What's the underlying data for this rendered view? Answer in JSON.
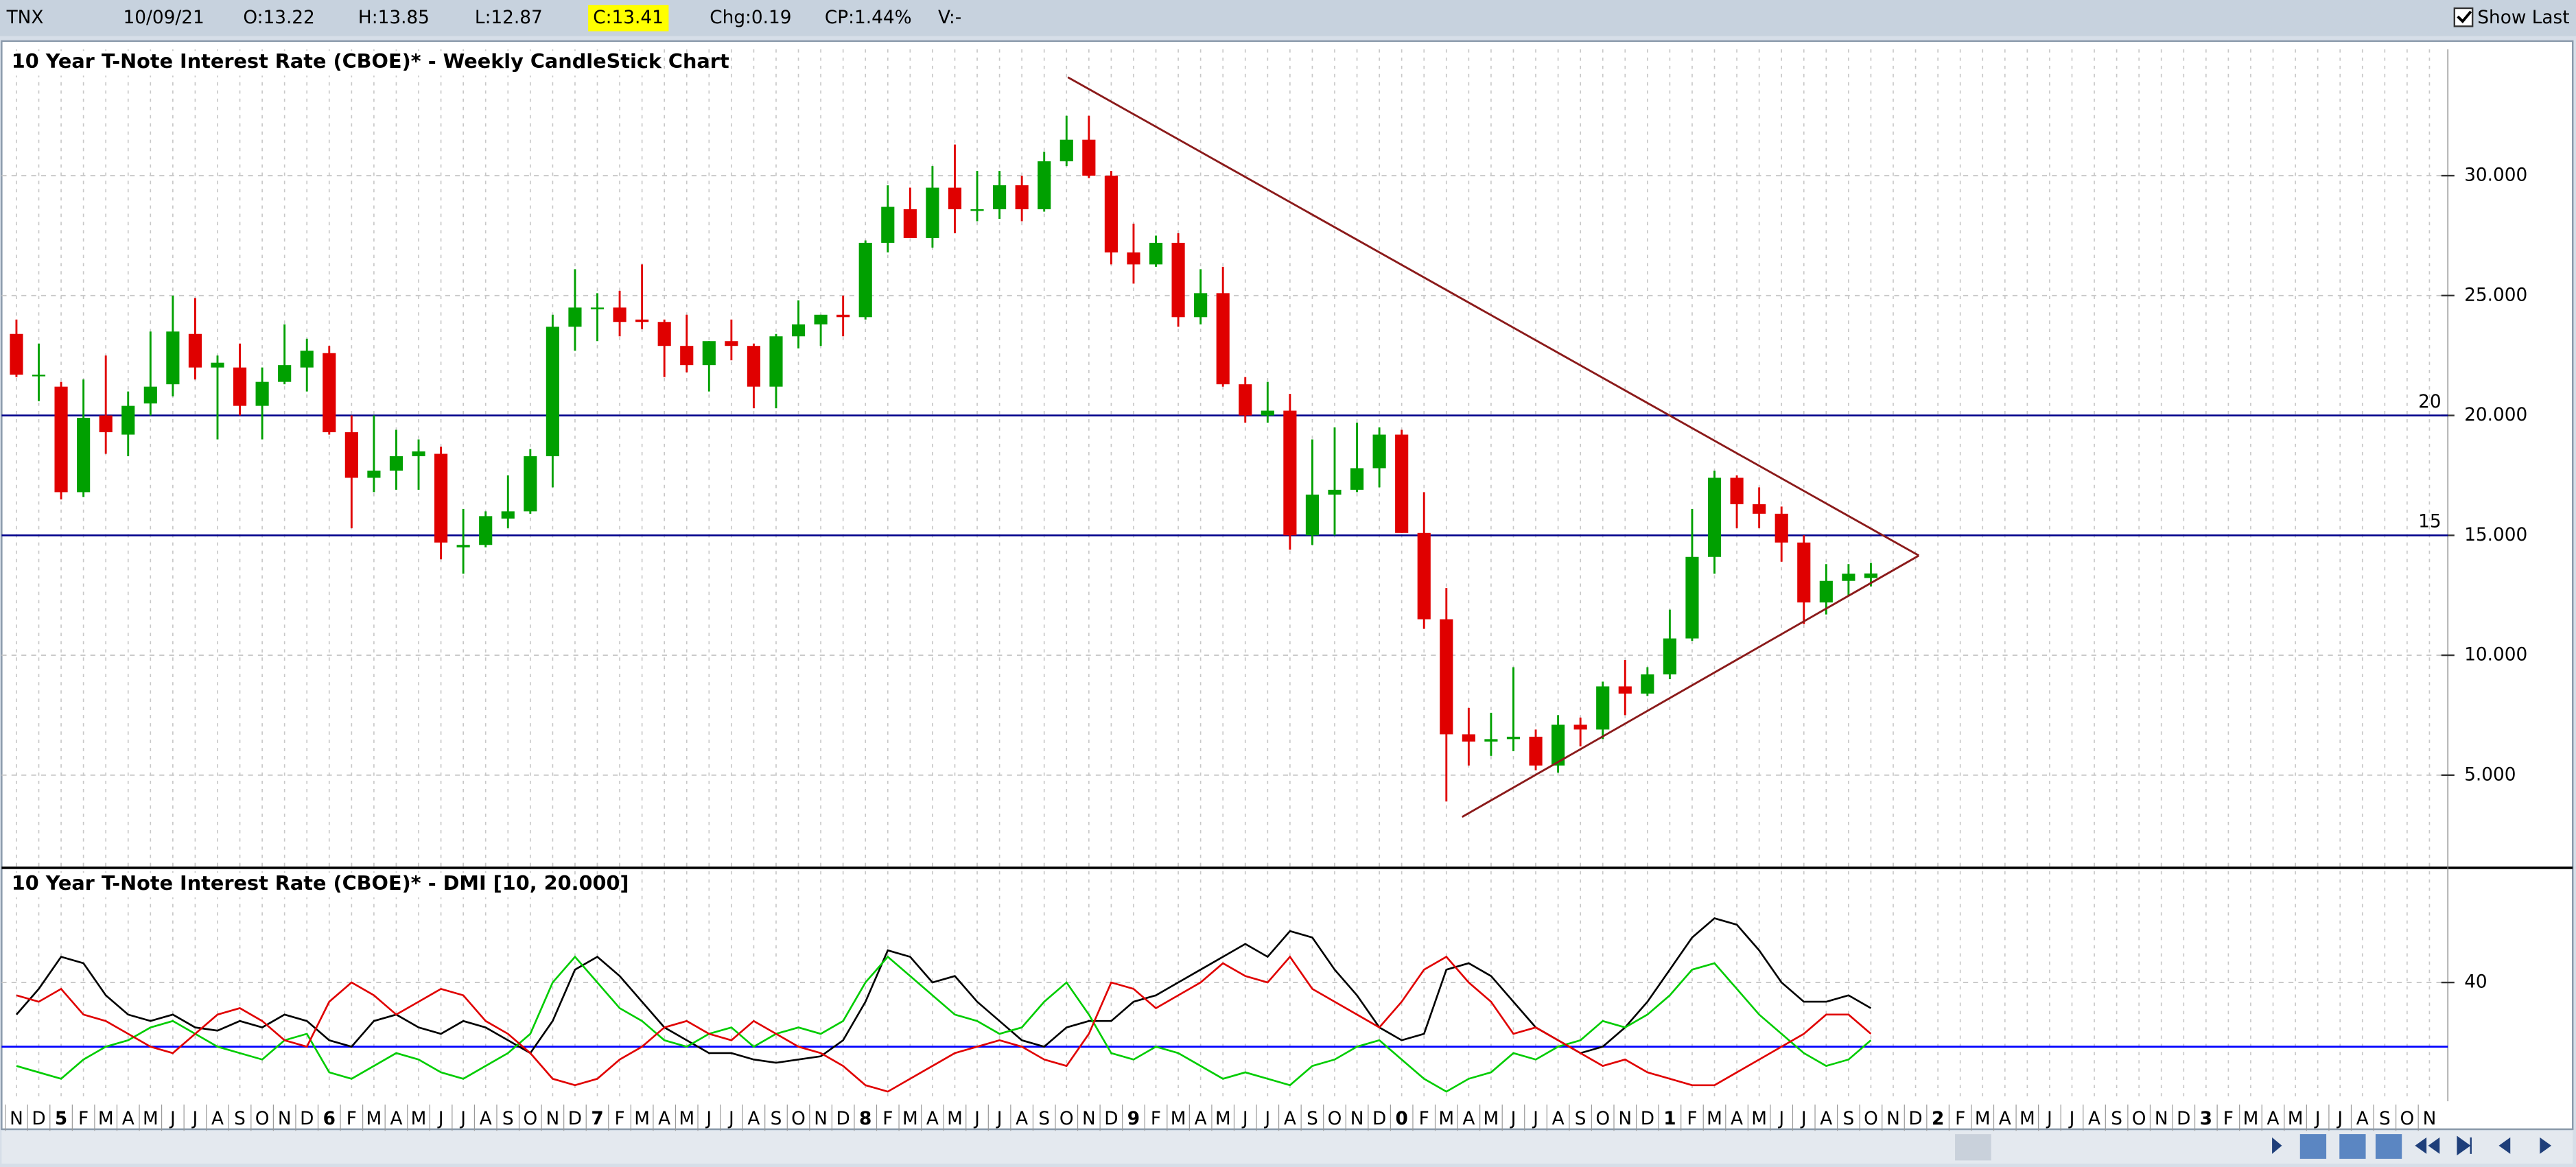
{
  "header": {
    "symbol": "TNX",
    "date": "10/09/21",
    "open": "O:13.22",
    "high": "H:13.85",
    "low": "L:12.87",
    "close": "C:13.41",
    "change": "Chg:0.19",
    "change_percent": "CP:1.44%",
    "volume": "V:-",
    "show_last": "Show Last"
  },
  "chart_data": [
    {
      "type": "candlestick",
      "title": "10 Year T-Note Interest Rate (CBOE)* - Weekly CandleStick Chart",
      "open": [
        23.4,
        21.7,
        21.2,
        16.8,
        20.0,
        19.2,
        20.5,
        21.3,
        23.4,
        22.0,
        22.0,
        20.4,
        21.4,
        22.0,
        22.6,
        19.3,
        17.4,
        17.7,
        18.3,
        18.4,
        14.5,
        14.6,
        15.7,
        16.0,
        18.3,
        23.7,
        24.5,
        24.5,
        24.0,
        23.9,
        22.9,
        22.1,
        23.1,
        22.9,
        21.2,
        23.3,
        23.8,
        24.2,
        24.1,
        27.2,
        28.6,
        27.4,
        29.5,
        28.6,
        28.6,
        29.6,
        28.6,
        30.6,
        31.5,
        30.0,
        26.8,
        26.3,
        27.2,
        24.1,
        25.1,
        21.3,
        20.0,
        20.2,
        15.0,
        16.7,
        16.9,
        17.8,
        19.2,
        15.1,
        11.5,
        6.7,
        6.4,
        6.5,
        6.6,
        5.4,
        7.1,
        6.9,
        8.7,
        8.4,
        9.2,
        10.7,
        14.1,
        17.4,
        16.3,
        15.9,
        14.7,
        12.2,
        13.1,
        13.22,
        null,
        null,
        null,
        null,
        null,
        null,
        null,
        null,
        null,
        null,
        null,
        null,
        null,
        null,
        null,
        null,
        null,
        null,
        null,
        null,
        null,
        null,
        null,
        null,
        null
      ],
      "high": [
        24.0,
        23.0,
        21.4,
        21.5,
        22.5,
        21.0,
        23.5,
        25.0,
        24.9,
        22.5,
        23.0,
        22.0,
        23.8,
        23.2,
        22.9,
        20.0,
        20.0,
        19.4,
        19.0,
        18.7,
        16.1,
        16.0,
        17.5,
        18.6,
        24.2,
        26.1,
        25.1,
        25.2,
        26.3,
        24.0,
        24.2,
        23.1,
        24.0,
        23.0,
        23.4,
        24.8,
        24.2,
        25.0,
        27.3,
        29.6,
        29.5,
        30.4,
        31.3,
        30.2,
        30.2,
        30.0,
        31.0,
        32.5,
        32.5,
        30.2,
        28.0,
        27.5,
        27.6,
        26.1,
        26.2,
        21.6,
        21.4,
        20.9,
        19.0,
        19.5,
        19.7,
        19.5,
        19.4,
        16.8,
        12.8,
        7.8,
        7.6,
        9.5,
        6.9,
        7.5,
        7.4,
        8.9,
        9.8,
        9.5,
        11.9,
        16.1,
        17.7,
        17.5,
        17.0,
        16.2,
        15.0,
        13.8,
        13.8,
        13.85,
        null,
        null,
        null,
        null,
        null,
        null,
        null,
        null,
        null,
        null,
        null,
        null,
        null,
        null,
        null,
        null,
        null,
        null,
        null,
        null,
        null,
        null,
        null,
        null,
        null
      ],
      "low": [
        21.6,
        20.6,
        16.5,
        16.6,
        18.4,
        18.3,
        20.0,
        20.8,
        21.5,
        19.0,
        20.0,
        19.0,
        21.3,
        21.0,
        19.2,
        15.3,
        16.8,
        16.9,
        16.9,
        14.0,
        13.4,
        14.5,
        15.3,
        15.9,
        17.0,
        22.7,
        23.1,
        23.3,
        23.6,
        21.6,
        21.8,
        21.0,
        22.3,
        20.3,
        20.3,
        22.8,
        22.9,
        23.3,
        24.0,
        26.8,
        27.4,
        27.0,
        27.6,
        28.1,
        28.2,
        28.1,
        28.5,
        30.4,
        29.9,
        26.3,
        25.5,
        26.2,
        23.7,
        23.8,
        21.2,
        19.7,
        19.7,
        14.4,
        14.6,
        15.0,
        16.8,
        17.0,
        15.1,
        11.1,
        3.9,
        5.4,
        5.8,
        6.0,
        5.2,
        5.1,
        6.2,
        6.5,
        7.5,
        8.3,
        9.0,
        10.6,
        13.4,
        15.3,
        15.3,
        13.9,
        11.3,
        11.7,
        12.5,
        12.87,
        null,
        null,
        null,
        null,
        null,
        null,
        null,
        null,
        null,
        null,
        null,
        null,
        null,
        null,
        null,
        null,
        null,
        null,
        null,
        null,
        null,
        null,
        null,
        null,
        null
      ],
      "close": [
        21.7,
        21.7,
        16.8,
        19.9,
        19.3,
        20.4,
        21.2,
        23.5,
        22.0,
        22.2,
        20.4,
        21.4,
        22.1,
        22.7,
        19.3,
        17.4,
        17.7,
        18.3,
        18.5,
        14.7,
        14.6,
        15.8,
        16.0,
        18.3,
        23.7,
        24.5,
        24.5,
        23.9,
        23.9,
        22.9,
        22.1,
        23.1,
        22.9,
        21.2,
        23.3,
        23.8,
        24.2,
        24.1,
        27.2,
        28.7,
        27.4,
        29.5,
        28.6,
        28.6,
        29.6,
        28.6,
        30.6,
        31.5,
        30.0,
        26.8,
        26.3,
        27.2,
        24.1,
        25.1,
        21.3,
        20.0,
        20.2,
        15.0,
        16.7,
        16.9,
        17.8,
        19.2,
        15.1,
        11.5,
        6.7,
        6.4,
        6.5,
        6.6,
        5.4,
        7.1,
        6.9,
        8.7,
        8.4,
        9.2,
        10.7,
        14.1,
        17.4,
        16.3,
        15.9,
        14.7,
        12.2,
        13.1,
        13.4,
        13.41,
        null,
        null,
        null,
        null,
        null,
        null,
        null,
        null,
        null,
        null,
        null,
        null,
        null,
        null,
        null,
        null,
        null,
        null,
        null,
        null,
        null,
        null,
        null,
        null,
        null
      ],
      "up_color": "#00a000",
      "down_color": "#e00000",
      "ylim": [
        1.2,
        33.9
      ],
      "yticks": [
        {
          "value": 5,
          "label": "5.000"
        },
        {
          "value": 10,
          "label": "10.000"
        },
        {
          "value": 15,
          "label": "15.000"
        },
        {
          "value": 20,
          "label": "20.000"
        },
        {
          "value": 25,
          "label": "25.000"
        },
        {
          "value": 30,
          "label": "30.000"
        }
      ],
      "grid": true,
      "hlines": [
        20,
        15
      ],
      "hline_color": "#00008b"
    },
    {
      "type": "line",
      "title": "10 Year T-Note Interest Rate (CBOE)* - DMI [10, 20.000]",
      "categories": [
        "N",
        "D",
        "5",
        "F",
        "M",
        "A",
        "M",
        "J",
        "J",
        "A",
        "S",
        "O",
        "N",
        "D",
        "6",
        "F",
        "M",
        "A",
        "M",
        "J",
        "J",
        "A",
        "S",
        "O",
        "N",
        "D",
        "7",
        "F",
        "M",
        "A",
        "M",
        "J",
        "J",
        "A",
        "S",
        "O",
        "N",
        "D",
        "8",
        "F",
        "M",
        "A",
        "M",
        "J",
        "J",
        "A",
        "S",
        "O",
        "N",
        "D",
        "9",
        "F",
        "M",
        "A",
        "M",
        "J",
        "J",
        "A",
        "S",
        "O",
        "N",
        "D",
        "0",
        "F",
        "M",
        "A",
        "M",
        "J",
        "J",
        "A",
        "S",
        "O",
        "N",
        "D",
        "1",
        "F",
        "M",
        "A",
        "M",
        "J",
        "J",
        "A",
        "S",
        "O",
        "N",
        "D",
        "2",
        "F",
        "M",
        "A",
        "M",
        "J",
        "J",
        "A",
        "S",
        "O",
        "N",
        "D",
        "3",
        "F",
        "M",
        "A",
        "M",
        "J",
        "J",
        "A",
        "S",
        "O",
        "N"
      ],
      "series": [
        {
          "color": "#000000",
          "values": [
            30,
            38,
            48,
            46,
            36,
            30,
            28,
            30,
            26,
            25,
            28,
            26,
            30,
            28,
            22,
            20,
            28,
            30,
            26,
            24,
            28,
            26,
            22,
            18,
            28,
            44,
            48,
            42,
            34,
            26,
            22,
            18,
            18,
            16,
            15,
            16,
            17,
            22,
            34,
            50,
            48,
            40,
            42,
            34,
            28,
            22,
            20,
            26,
            28,
            28,
            34,
            36,
            40,
            44,
            48,
            52,
            48,
            56,
            54,
            44,
            36,
            26,
            22,
            24,
            44,
            46,
            42,
            34,
            26,
            22,
            18,
            20,
            26,
            34,
            44,
            54,
            60,
            58,
            50,
            40,
            34,
            34,
            36,
            32,
            null,
            null,
            null,
            null,
            null,
            null,
            null,
            null,
            null,
            null,
            null,
            null,
            null,
            null,
            null,
            null,
            null,
            null,
            null,
            null,
            null,
            null,
            null,
            null,
            null
          ]
        },
        {
          "color": "#00cc00",
          "values": [
            14,
            12,
            10,
            16,
            20,
            22,
            26,
            28,
            24,
            20,
            18,
            16,
            22,
            24,
            12,
            10,
            14,
            18,
            16,
            12,
            10,
            14,
            18,
            24,
            40,
            48,
            40,
            32,
            28,
            22,
            20,
            24,
            26,
            20,
            24,
            26,
            24,
            28,
            40,
            48,
            42,
            36,
            30,
            28,
            24,
            26,
            34,
            40,
            30,
            18,
            16,
            20,
            18,
            14,
            10,
            12,
            10,
            8,
            14,
            16,
            20,
            22,
            16,
            10,
            6,
            10,
            12,
            18,
            16,
            20,
            22,
            28,
            26,
            30,
            36,
            44,
            46,
            38,
            30,
            24,
            18,
            14,
            16,
            22,
            null,
            null,
            null,
            null,
            null,
            null,
            null,
            null,
            null,
            null,
            null,
            null,
            null,
            null,
            null,
            null,
            null,
            null,
            null,
            null,
            null,
            null,
            null,
            null,
            null
          ]
        },
        {
          "color": "#e00000",
          "values": [
            36,
            34,
            38,
            30,
            28,
            24,
            20,
            18,
            24,
            30,
            32,
            28,
            22,
            20,
            34,
            40,
            36,
            30,
            34,
            38,
            36,
            28,
            24,
            18,
            10,
            8,
            10,
            16,
            20,
            26,
            28,
            24,
            22,
            28,
            24,
            20,
            18,
            14,
            8,
            6,
            10,
            14,
            18,
            20,
            22,
            20,
            16,
            14,
            24,
            40,
            38,
            32,
            36,
            40,
            46,
            42,
            40,
            48,
            38,
            34,
            30,
            26,
            34,
            44,
            48,
            40,
            34,
            24,
            26,
            22,
            18,
            14,
            16,
            12,
            10,
            8,
            8,
            12,
            16,
            20,
            24,
            30,
            30,
            24,
            null,
            null,
            null,
            null,
            null,
            null,
            null,
            null,
            null,
            null,
            null,
            null,
            null,
            null,
            null,
            null,
            null,
            null,
            null,
            null,
            null,
            null,
            null,
            null,
            null
          ]
        }
      ],
      "ylim": [
        3,
        67
      ],
      "yticks": [
        40
      ],
      "grid": true,
      "hlines": [
        20
      ],
      "hline_color": "#0000ff"
    }
  ]
}
